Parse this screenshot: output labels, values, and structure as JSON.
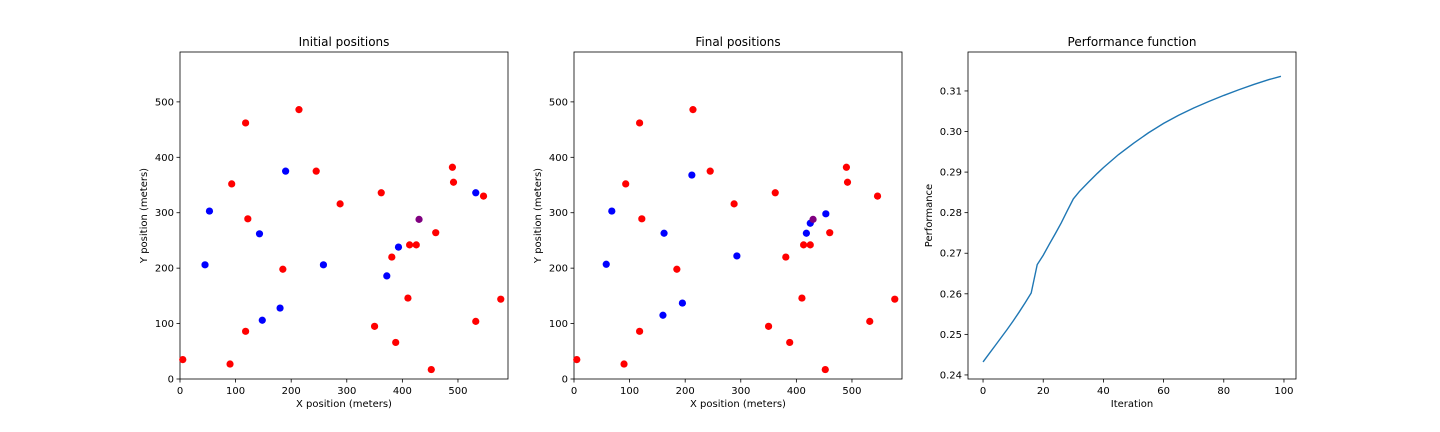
{
  "chart_data": [
    {
      "type": "scatter",
      "title": "Initial positions",
      "xlabel": "X position (meters)",
      "ylabel": "Y position (meters)",
      "xlim": [
        0,
        590
      ],
      "ylim": [
        0,
        590
      ],
      "xticks": [
        0,
        100,
        200,
        300,
        400,
        500
      ],
      "yticks": [
        0,
        100,
        200,
        300,
        400,
        500
      ],
      "grid": false,
      "series": [
        {
          "color": "#ff0000",
          "points": [
            [
              5,
              35
            ],
            [
              90,
              27
            ],
            [
              93,
              352
            ],
            [
              118,
              86
            ],
            [
              118,
              462
            ],
            [
              122,
              289
            ],
            [
              185,
              198
            ],
            [
              214,
              486
            ],
            [
              245,
              375
            ],
            [
              288,
              316
            ],
            [
              350,
              95
            ],
            [
              362,
              336
            ],
            [
              381,
              220
            ],
            [
              388,
              66
            ],
            [
              410,
              146
            ],
            [
              413,
              242
            ],
            [
              425,
              242
            ],
            [
              452,
              17
            ],
            [
              460,
              264
            ],
            [
              490,
              382
            ],
            [
              492,
              355
            ],
            [
              532,
              104
            ],
            [
              546,
              330
            ],
            [
              577,
              144
            ]
          ]
        },
        {
          "color": "#0000ff",
          "points": [
            [
              45,
              206
            ],
            [
              53,
              303
            ],
            [
              143,
              262
            ],
            [
              148,
              106
            ],
            [
              180,
              128
            ],
            [
              190,
              375
            ],
            [
              258,
              206
            ],
            [
              372,
              186
            ],
            [
              393,
              238
            ],
            [
              532,
              336
            ]
          ]
        },
        {
          "color": "#800080",
          "points": [
            [
              430,
              288
            ]
          ]
        }
      ]
    },
    {
      "type": "scatter",
      "title": "Final positions",
      "xlabel": "X position (meters)",
      "ylabel": "Y position (meters)",
      "xlim": [
        0,
        590
      ],
      "ylim": [
        0,
        590
      ],
      "xticks": [
        0,
        100,
        200,
        300,
        400,
        500
      ],
      "yticks": [
        0,
        100,
        200,
        300,
        400,
        500
      ],
      "grid": false,
      "series": [
        {
          "color": "#ff0000",
          "points": [
            [
              5,
              35
            ],
            [
              90,
              27
            ],
            [
              93,
              352
            ],
            [
              118,
              86
            ],
            [
              118,
              462
            ],
            [
              122,
              289
            ],
            [
              185,
              198
            ],
            [
              214,
              486
            ],
            [
              245,
              375
            ],
            [
              288,
              316
            ],
            [
              350,
              95
            ],
            [
              362,
              336
            ],
            [
              381,
              220
            ],
            [
              388,
              66
            ],
            [
              410,
              146
            ],
            [
              413,
              242
            ],
            [
              425,
              242
            ],
            [
              452,
              17
            ],
            [
              460,
              264
            ],
            [
              490,
              382
            ],
            [
              492,
              355
            ],
            [
              532,
              104
            ],
            [
              546,
              330
            ],
            [
              577,
              144
            ]
          ]
        },
        {
          "color": "#0000ff",
          "points": [
            [
              58,
              207
            ],
            [
              68,
              303
            ],
            [
              160,
              115
            ],
            [
              162,
              263
            ],
            [
              195,
              137
            ],
            [
              212,
              368
            ],
            [
              293,
              222
            ],
            [
              418,
              263
            ],
            [
              425,
              281
            ],
            [
              453,
              298
            ]
          ]
        },
        {
          "color": "#800080",
          "points": [
            [
              430,
              288
            ]
          ]
        }
      ]
    },
    {
      "type": "line",
      "title": "Performance function",
      "xlabel": "Iteration",
      "ylabel": "Performance",
      "xlim": [
        -5,
        104
      ],
      "ylim": [
        0.239,
        0.3196
      ],
      "xticks": [
        0,
        20,
        40,
        60,
        80,
        100
      ],
      "yticks": [
        0.24,
        0.25,
        0.26,
        0.27,
        0.28,
        0.29,
        0.3,
        0.31
      ],
      "grid": false,
      "series": [
        {
          "color": "#1f77b4",
          "x": [
            0,
            2,
            4,
            6,
            8,
            10,
            12,
            14,
            16,
            18,
            20,
            22,
            24,
            26,
            28,
            30,
            32,
            35,
            38,
            40,
            45,
            50,
            55,
            60,
            65,
            70,
            75,
            80,
            85,
            90,
            95,
            99
          ],
          "values": [
            0.2432,
            0.2452,
            0.2472,
            0.2492,
            0.2512,
            0.2533,
            0.2555,
            0.2578,
            0.2602,
            0.2672,
            0.2695,
            0.2722,
            0.2748,
            0.2775,
            0.2805,
            0.2834,
            0.2852,
            0.2875,
            0.2897,
            0.2911,
            0.2943,
            0.2971,
            0.2997,
            0.302,
            0.304,
            0.3058,
            0.3074,
            0.3089,
            0.3103,
            0.3116,
            0.3128,
            0.3136
          ]
        }
      ]
    }
  ]
}
